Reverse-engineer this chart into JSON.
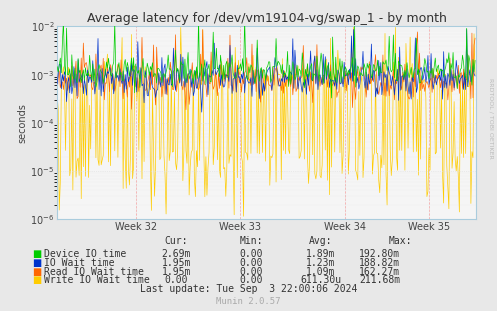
{
  "title": "Average latency for /dev/vm19104-vg/swap_1 - by month",
  "ylabel": "seconds",
  "background_color": "#e8e8e8",
  "plot_bg_color": "#f5f5f5",
  "grid_color": "#dddddd",
  "ylim": [
    1e-06,
    0.01
  ],
  "xlim": [
    0,
    400
  ],
  "week_ticks": [
    75,
    175,
    275,
    355
  ],
  "week_labels": [
    "Week 32",
    "Week 33",
    "Week 34",
    "Week 35"
  ],
  "vline_color": "#ff9999",
  "hline_color": "#ffaaaa",
  "series": {
    "device_io": {
      "color": "#00cc00",
      "label": "Device IO time",
      "cur": "2.69m",
      "min": "0.00",
      "avg": "1.89m",
      "max": "192.80m"
    },
    "io_wait": {
      "color": "#0033cc",
      "label": "IO Wait time",
      "cur": "1.95m",
      "min": "0.00",
      "avg": "1.23m",
      "max": "188.82m"
    },
    "read_io": {
      "color": "#ff6600",
      "label": "Read IO Wait time",
      "cur": "1.95m",
      "min": "0.00",
      "avg": "1.09m",
      "max": "162.27m"
    },
    "write_io": {
      "color": "#ffcc00",
      "label": "Write IO Wait time",
      "cur": "0.00",
      "min": "0.00",
      "avg": "611.30u",
      "max": "211.68m"
    }
  },
  "footer": "Last update: Tue Sep  3 22:00:06 2024",
  "munin_version": "Munin 2.0.57",
  "rrdtool_text": "RRDTOOL / TOBI OETIKER",
  "title_fontsize": 9,
  "axis_fontsize": 7,
  "legend_fontsize": 7,
  "n_points": 400
}
